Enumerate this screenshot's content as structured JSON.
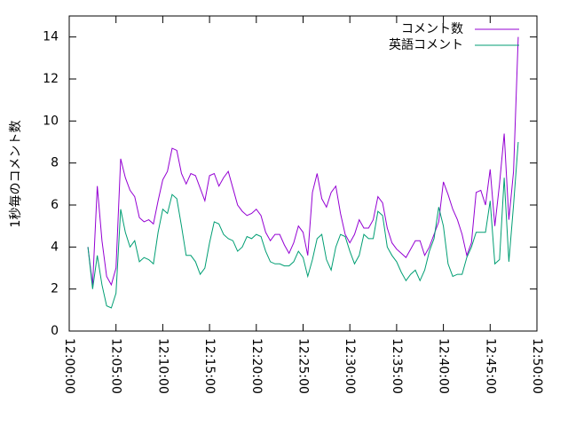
{
  "chart_data": {
    "type": "line",
    "y_label": "1秒毎のコメント数",
    "x": [
      "12:02:00",
      "12:02:30",
      "12:03:00",
      "12:03:30",
      "12:04:00",
      "12:04:30",
      "12:05:00",
      "12:05:30",
      "12:06:00",
      "12:06:30",
      "12:07:00",
      "12:07:30",
      "12:08:00",
      "12:08:30",
      "12:09:00",
      "12:09:30",
      "12:10:00",
      "12:10:30",
      "12:11:00",
      "12:11:30",
      "12:12:00",
      "12:12:30",
      "12:13:00",
      "12:13:30",
      "12:14:00",
      "12:14:30",
      "12:15:00",
      "12:15:30",
      "12:16:00",
      "12:16:30",
      "12:17:00",
      "12:17:30",
      "12:18:00",
      "12:18:30",
      "12:19:00",
      "12:19:30",
      "12:20:00",
      "12:20:30",
      "12:21:00",
      "12:21:30",
      "12:22:00",
      "12:22:30",
      "12:23:00",
      "12:23:30",
      "12:24:00",
      "12:24:30",
      "12:25:00",
      "12:25:30",
      "12:26:00",
      "12:26:30",
      "12:27:00",
      "12:27:30",
      "12:28:00",
      "12:28:30",
      "12:29:00",
      "12:29:30",
      "12:30:00",
      "12:30:30",
      "12:31:00",
      "12:31:30",
      "12:32:00",
      "12:32:30",
      "12:33:00",
      "12:33:30",
      "12:34:00",
      "12:34:30",
      "12:35:00",
      "12:35:30",
      "12:36:00",
      "12:36:30",
      "12:37:00",
      "12:37:30",
      "12:38:00",
      "12:38:30",
      "12:39:00",
      "12:39:30",
      "12:40:00",
      "12:40:30",
      "12:41:00",
      "12:41:30",
      "12:42:00",
      "12:42:30",
      "12:43:00",
      "12:43:30",
      "12:44:00",
      "12:44:30",
      "12:45:00",
      "12:45:30",
      "12:46:00",
      "12:46:30",
      "12:47:00",
      "12:47:30",
      "12:48:00"
    ],
    "series": [
      {
        "name": "コメント数",
        "color": "#9400d3",
        "values": [
          4.0,
          2.2,
          6.9,
          4.3,
          2.6,
          2.2,
          3.0,
          8.2,
          7.3,
          6.7,
          6.4,
          5.4,
          5.2,
          5.3,
          5.1,
          6.2,
          7.2,
          7.6,
          8.7,
          8.6,
          7.5,
          7.0,
          7.5,
          7.4,
          6.8,
          6.2,
          7.4,
          7.5,
          6.9,
          7.3,
          7.6,
          6.8,
          6.0,
          5.7,
          5.5,
          5.6,
          5.8,
          5.5,
          4.7,
          4.3,
          4.6,
          4.6,
          4.1,
          3.7,
          4.2,
          5.0,
          4.7,
          3.6,
          6.6,
          7.5,
          6.3,
          5.9,
          6.6,
          6.9,
          5.6,
          4.6,
          4.2,
          4.6,
          5.3,
          4.9,
          4.9,
          5.3,
          6.4,
          6.1,
          4.9,
          4.2,
          3.9,
          3.7,
          3.5,
          3.9,
          4.3,
          4.3,
          3.6,
          4.0,
          4.6,
          5.2,
          7.1,
          6.5,
          5.8,
          5.3,
          4.6,
          3.6,
          4.2,
          6.6,
          6.7,
          6.0,
          7.7,
          5.0,
          7.0,
          9.4,
          5.3,
          7.6,
          14.0
        ]
      },
      {
        "name": "英語コメント",
        "color": "#009e73",
        "values": [
          4.0,
          2.0,
          3.6,
          2.2,
          1.2,
          1.1,
          1.8,
          5.8,
          4.7,
          4.0,
          4.3,
          3.3,
          3.5,
          3.4,
          3.2,
          4.7,
          5.8,
          5.6,
          6.5,
          6.3,
          5.0,
          3.6,
          3.6,
          3.3,
          2.7,
          3.0,
          4.2,
          5.2,
          5.1,
          4.6,
          4.4,
          4.3,
          3.8,
          4.0,
          4.5,
          4.4,
          4.6,
          4.5,
          3.8,
          3.3,
          3.2,
          3.2,
          3.1,
          3.1,
          3.3,
          3.8,
          3.5,
          2.6,
          3.4,
          4.4,
          4.6,
          3.4,
          2.9,
          4.0,
          4.6,
          4.5,
          3.8,
          3.2,
          3.6,
          4.6,
          4.4,
          4.4,
          5.7,
          5.5,
          4.0,
          3.6,
          3.3,
          2.8,
          2.4,
          2.7,
          2.9,
          2.4,
          2.9,
          3.8,
          4.4,
          5.9,
          5.0,
          3.2,
          2.6,
          2.7,
          2.7,
          3.5,
          4.0,
          4.7,
          4.7,
          4.7,
          6.2,
          3.2,
          3.4,
          7.3,
          3.3,
          6.0,
          9.0
        ]
      }
    ],
    "xlim": [
      "12:00:00",
      "12:50:00"
    ],
    "xticks": [
      "12:00:00",
      "12:05:00",
      "12:10:00",
      "12:15:00",
      "12:20:00",
      "12:25:00",
      "12:30:00",
      "12:35:00",
      "12:40:00",
      "12:45:00",
      "12:50:00"
    ],
    "ylim": [
      0,
      15
    ],
    "yticks": [
      0,
      2,
      4,
      6,
      8,
      10,
      12,
      14
    ],
    "legend": "top-right"
  }
}
